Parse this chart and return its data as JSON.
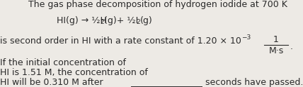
{
  "bg_color": "#edeae5",
  "line1": "The gas phase decomposition of hydrogen iodide at 700 K",
  "eq_part1": "HI(g) → ½H",
  "eq_sub1": "2",
  "eq_part2": "(g)+ ½I",
  "eq_sub2": "2",
  "eq_part3": "(g)",
  "line3_pre": "is second order in HI with a rate constant of 1.20 × 10",
  "line3_exp": "−3",
  "frac_num": "1",
  "frac_den": "M·s",
  "frac_dot": ".",
  "line4": "If the initial concentration of",
  "line5": "HI is 1.51 M, the concentration of",
  "line6a": "HI will be 0.310 M after",
  "line6b": "seconds have passed.",
  "fs": 9.0,
  "fs_small": 6.5,
  "tc": "#2a2a2a"
}
